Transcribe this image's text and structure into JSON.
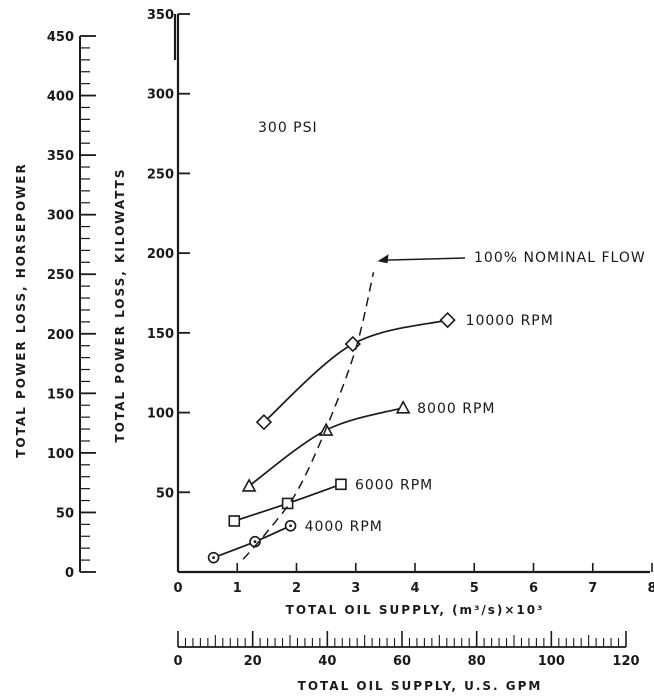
{
  "chart_data": {
    "type": "line",
    "title": "",
    "annotation": "300 PSI",
    "xlabel": "TOTAL OIL SUPPLY, (m³/s)×10³",
    "xlabel_secondary": "TOTAL OIL SUPPLY, U.S. GPM",
    "ylabel": "TOTAL POWER LOSS, KILOWATTS",
    "ylabel_secondary": "TOTAL POWER LOSS, HORSEPOWER",
    "xlim": [
      0,
      8
    ],
    "ylim": [
      0,
      350
    ],
    "xlim_secondary": [
      0,
      120
    ],
    "ylim_secondary": [
      0,
      450
    ],
    "x_ticks": [
      "0",
      "1",
      "2",
      "3",
      "4",
      "5",
      "6",
      "7",
      "8"
    ],
    "y_ticks": [
      "50",
      "100",
      "150",
      "200",
      "250",
      "300",
      "350"
    ],
    "x_ticks_secondary": [
      "0",
      "20",
      "40",
      "60",
      "80",
      "100",
      "120"
    ],
    "y_ticks_secondary": [
      "0",
      "50",
      "100",
      "150",
      "200",
      "250",
      "300",
      "350",
      "400",
      "450"
    ],
    "series": [
      {
        "name": "10000 RPM",
        "marker": "diamond",
        "x": [
          1.45,
          2.95,
          4.55
        ],
        "y": [
          94,
          143,
          158
        ]
      },
      {
        "name": "8000 RPM",
        "marker": "triangle",
        "x": [
          1.2,
          2.5,
          3.8
        ],
        "y": [
          54,
          89,
          103
        ]
      },
      {
        "name": "6000 RPM",
        "marker": "square",
        "x": [
          0.95,
          1.85,
          2.75
        ],
        "y": [
          32,
          43,
          55
        ]
      },
      {
        "name": "4000 RPM",
        "marker": "circle-dot",
        "x": [
          0.6,
          1.3,
          1.9
        ],
        "y": [
          9,
          19,
          29
        ]
      },
      {
        "name": "100% NOMINAL FLOW",
        "marker": "none",
        "style": "dashed",
        "x": [
          1.1,
          1.5,
          2.0,
          2.5,
          3.0,
          3.3
        ],
        "y": [
          8,
          25,
          50,
          90,
          140,
          188
        ]
      }
    ]
  }
}
